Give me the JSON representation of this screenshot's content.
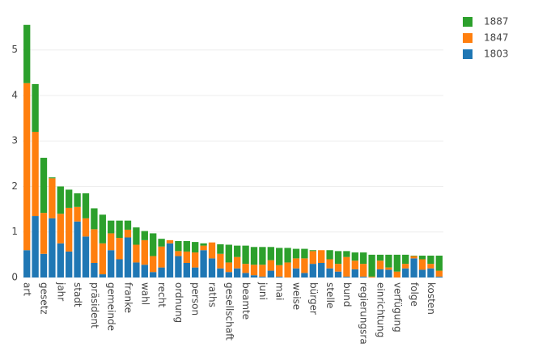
{
  "chart_data": {
    "type": "stacked_bar",
    "categories": [
      "art",
      null,
      "gesetz",
      null,
      "jahr",
      null,
      "stadt",
      null,
      "präsident",
      null,
      "gemeinde",
      null,
      "franke",
      null,
      "wahl",
      null,
      "recht",
      null,
      "ordnung",
      null,
      "person",
      null,
      "raths",
      null,
      "gesellschaft",
      null,
      "beamte",
      null,
      "juni",
      null,
      "mai",
      null,
      "weise",
      null,
      "bürger",
      null,
      "stelle",
      null,
      "bund",
      null,
      "regierungsra",
      null,
      "einrichtung",
      null,
      "verfügung",
      null,
      "folge",
      null,
      "kosten",
      null
    ],
    "series": [
      {
        "name": "1803",
        "color": "#1f77b4",
        "values": [
          0.6,
          1.35,
          0.52,
          1.3,
          0.75,
          0.57,
          1.23,
          0.9,
          0.32,
          0.07,
          0.6,
          0.4,
          0.88,
          0.33,
          0.28,
          0.12,
          0.22,
          0.75,
          0.47,
          0.32,
          0.22,
          0.6,
          0.42,
          0.2,
          0.12,
          0.2,
          0.1,
          0.05,
          0.02,
          0.15,
          0.02,
          0,
          0.2,
          0.1,
          0.3,
          0.32,
          0.2,
          0.13,
          0.02,
          0.18,
          0.02,
          0,
          0.18,
          0.17,
          0,
          0.2,
          0.42,
          0.17,
          0.2,
          0.02
        ]
      },
      {
        "name": "1847",
        "color": "#ff7f0e",
        "values": [
          3.67,
          1.85,
          0.9,
          0.88,
          0.65,
          0.96,
          0.32,
          0.4,
          0.74,
          0.68,
          0.37,
          0.47,
          0.17,
          0.39,
          0.54,
          0.35,
          0.46,
          0.07,
          0.11,
          0.25,
          0.33,
          0.1,
          0.35,
          0.32,
          0.21,
          0.25,
          0.2,
          0.23,
          0.26,
          0.23,
          0.25,
          0.33,
          0.22,
          0.32,
          0.28,
          0.28,
          0.2,
          0.17,
          0.43,
          0.19,
          0.28,
          0.02,
          0.19,
          0.05,
          0.13,
          0.1,
          0.05,
          0.23,
          0.1,
          0.13
        ]
      },
      {
        "name": "1887",
        "color": "#2ca02c",
        "values": [
          1.28,
          1.05,
          1.21,
          0.02,
          0.6,
          0.4,
          0.3,
          0.55,
          0.46,
          0.63,
          0.28,
          0.38,
          0.2,
          0.38,
          0.2,
          0.5,
          0.17,
          0,
          0.22,
          0.23,
          0.23,
          0.05,
          0,
          0.21,
          0.39,
          0.25,
          0.4,
          0.39,
          0.39,
          0.29,
          0.38,
          0.32,
          0.21,
          0.21,
          0.02,
          0,
          0.2,
          0.28,
          0.13,
          0.18,
          0.25,
          0.48,
          0.13,
          0.28,
          0.37,
          0.2,
          0.01,
          0.08,
          0.18,
          0.33
        ]
      }
    ],
    "ylim": [
      0,
      5.83
    ],
    "yticks": [
      0,
      1,
      2,
      3,
      4,
      5
    ],
    "grid": true,
    "legend": "top-right"
  }
}
